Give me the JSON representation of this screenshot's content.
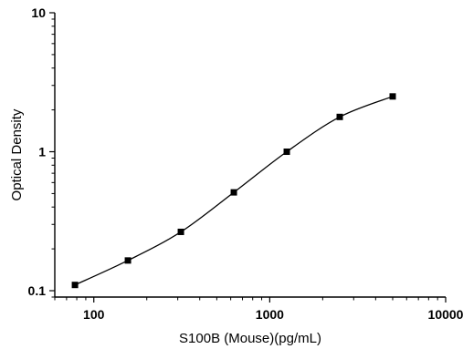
{
  "chart_data": {
    "type": "scatter",
    "title": "",
    "xlabel": "S100B (Mouse)(pg/mL)",
    "ylabel": "Optical Density",
    "xscale": "log",
    "yscale": "log",
    "xlim": [
      60,
      10000
    ],
    "ylim": [
      0.09,
      10
    ],
    "xticks": [
      {
        "value": 100,
        "label": "100"
      },
      {
        "value": 1000,
        "label": "1000"
      },
      {
        "value": 10000,
        "label": "10000"
      }
    ],
    "yticks": [
      {
        "value": 0.1,
        "label": "0.1"
      },
      {
        "value": 1,
        "label": "1"
      },
      {
        "value": 10,
        "label": "10"
      }
    ],
    "grid": false,
    "marker": "square",
    "fit": "four-parameter logistic curve",
    "x": [
      78.125,
      156.25,
      312.5,
      625,
      1250,
      2500,
      5000
    ],
    "y": [
      0.11,
      0.165,
      0.265,
      0.51,
      1.0,
      1.78,
      2.5
    ]
  }
}
